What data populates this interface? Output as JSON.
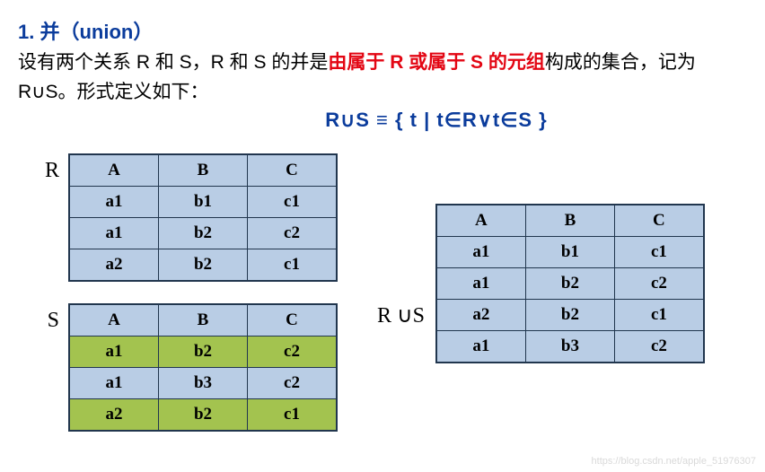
{
  "title": "1. 并（union）",
  "desc_pre": "设有两个关系 R 和 S，R 和 S 的并是",
  "desc_red": "由属于 R  或属于 S 的元组",
  "desc_post": "构成的集合，记为R∪S。形式定义如下：",
  "formula": "R∪S ≡ { t | t∈R∨t∈S }",
  "labels": {
    "R": "R",
    "S": "S",
    "RS": "R ∪S"
  },
  "headers": [
    "A",
    "B",
    "C"
  ],
  "tableR": [
    [
      "a1",
      "b1",
      "c1"
    ],
    [
      "a1",
      "b2",
      "c2"
    ],
    [
      "a2",
      "b2",
      "c1"
    ]
  ],
  "tableS": [
    {
      "row": [
        "a1",
        "b2",
        "c2"
      ],
      "hl": true
    },
    {
      "row": [
        "a1",
        "b3",
        "c2"
      ],
      "hl": false
    },
    {
      "row": [
        "a2",
        "b2",
        "c1"
      ],
      "hl": true
    }
  ],
  "tableRS": [
    [
      "a1",
      "b1",
      "c1"
    ],
    [
      "a1",
      "b2",
      "c2"
    ],
    [
      "a2",
      "b2",
      "c1"
    ],
    [
      "a1",
      "b3",
      "c2"
    ]
  ],
  "colors": {
    "title": "#0b3c9c",
    "red": "#e30613",
    "cell_bg": "#b9cde5",
    "hl_bg": "#a3c34f",
    "border": "#21364e"
  },
  "watermark": "https://blog.csdn.net/apple_51976307"
}
